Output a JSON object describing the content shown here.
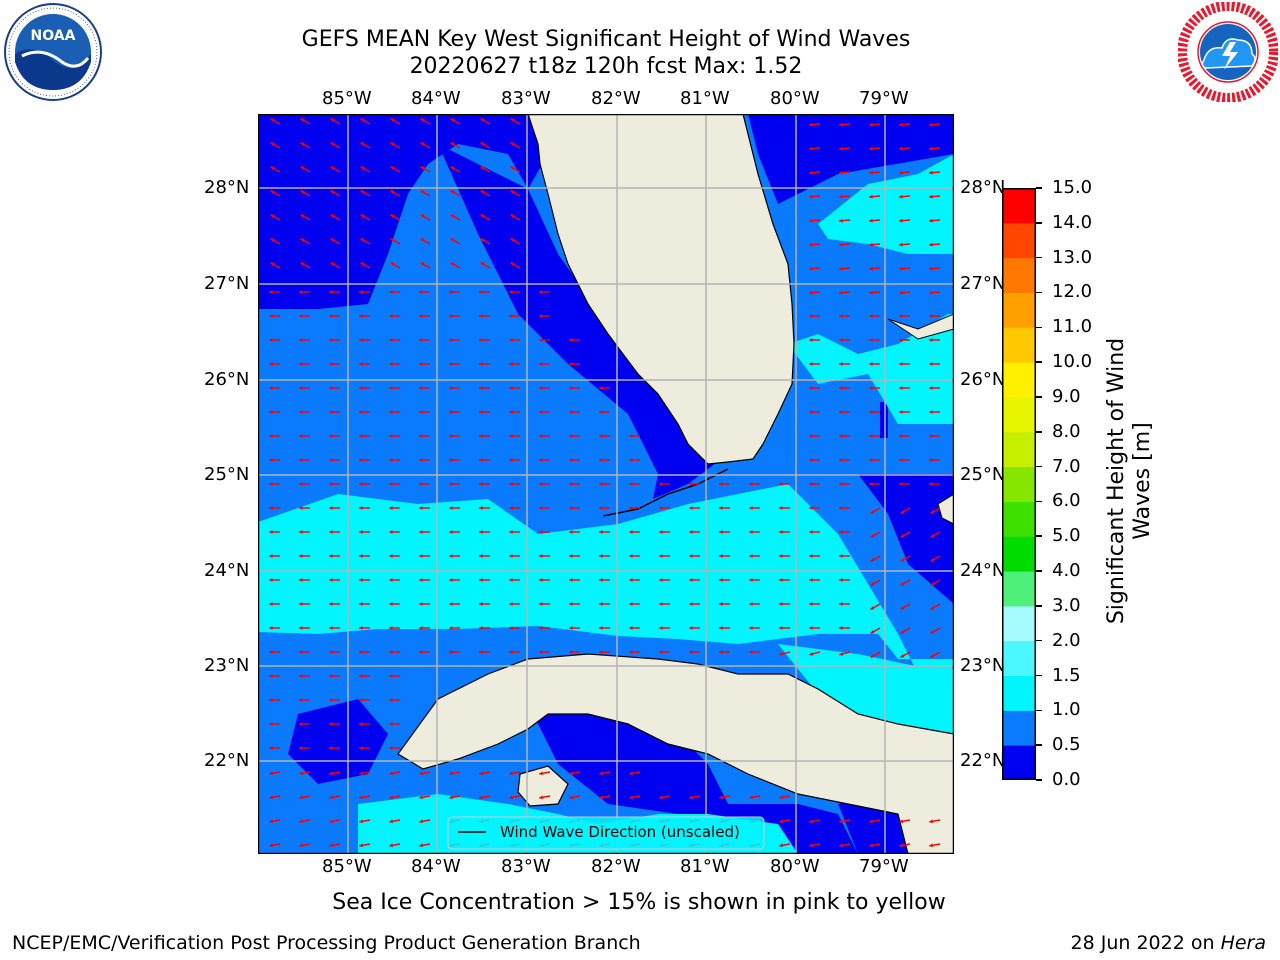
{
  "header": {
    "title_line1": "GEFS MEAN Key West Significant Height of Wind Waves",
    "title_line2": "20220627 t18z 120h fcst   Max: 1.52"
  },
  "logos": {
    "noaa": {
      "text": "NOAA",
      "ring_text": "NATIONAL OCEANIC AND ATMOSPHERIC ADMINISTRATION · U.S. DEPARTMENT OF COMMERCE"
    },
    "nws": {
      "ring_text": "NATIONAL WEATHER SERVICE"
    }
  },
  "map": {
    "lon_labels": [
      "85°W",
      "84°W",
      "83°W",
      "82°W",
      "81°W",
      "80°W",
      "79°W"
    ],
    "lat_labels": [
      "28°N",
      "27°N",
      "26°N",
      "25°N",
      "24°N",
      "23°N",
      "22°N"
    ],
    "legend_label": "Wind Wave Direction (unscaled)",
    "colors": {
      "land": "#eeecdd",
      "ocean_deep": "#0000f0",
      "ocean_mid": "#0a7aff",
      "ocean_light": "#00f5ff",
      "arrow": "#ff0000",
      "grid": "#b4b4b4"
    }
  },
  "colorbar": {
    "label": "Significant Height of Wind Waves [m]",
    "ticks": [
      "0.0",
      "0.5",
      "1.0",
      "1.5",
      "2.0",
      "3.0",
      "4.0",
      "5.0",
      "6.0",
      "7.0",
      "8.0",
      "9.0",
      "10.0",
      "11.0",
      "12.0",
      "13.0",
      "14.0",
      "15.0"
    ],
    "colors": [
      "#0000f0",
      "#0a7aff",
      "#00f5ff",
      "#4df7ff",
      "#a6fbff",
      "#4ef07a",
      "#00dc00",
      "#3ee000",
      "#86e600",
      "#c6ef00",
      "#e8f500",
      "#fff000",
      "#ffc800",
      "#ffa000",
      "#ff7800",
      "#ff4600",
      "#ff0000"
    ]
  },
  "notes": {
    "sea_ice": "Sea Ice Concentration > 15% is shown in pink to yellow"
  },
  "footer": {
    "left": "NCEP/EMC/Verification Post Processing Product Generation Branch",
    "right_prefix": "28 Jun 2022 on ",
    "right_machine": "Hera"
  }
}
